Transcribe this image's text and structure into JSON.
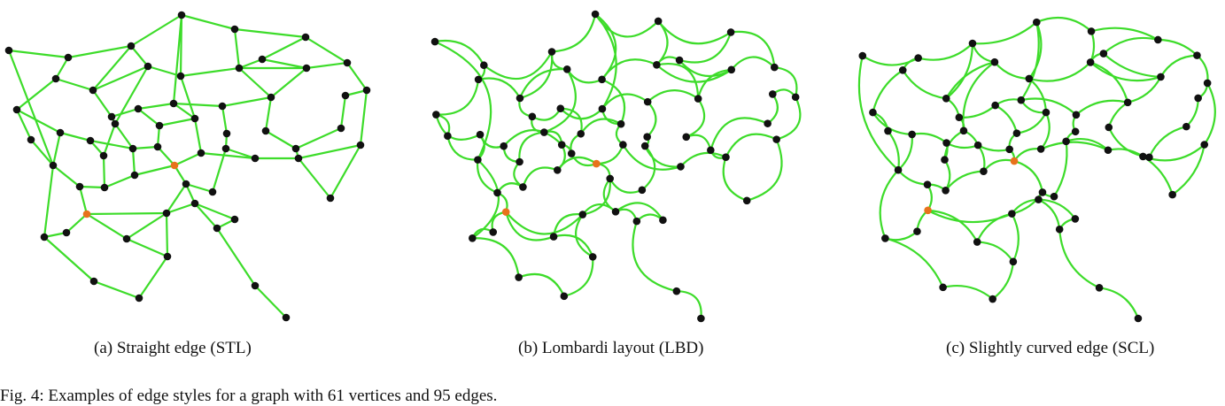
{
  "colors": {
    "edge": "#3ddc2a",
    "node": "#111111",
    "highlight_node": "#e8721c"
  },
  "panels": [
    {
      "id": "a",
      "caption": "(a)  Straight edge (STL)",
      "edge_style": "straight"
    },
    {
      "id": "b",
      "caption": "(b)  Lombardi layout (LBD)",
      "edge_style": "lombardi"
    },
    {
      "id": "c",
      "caption": "(c)  Slightly curved edge (SCL)",
      "edge_style": "curved"
    }
  ],
  "figure_caption": "Fig.  4: Examples of edge styles for a graph with 61 vertices and 95 edges."
}
